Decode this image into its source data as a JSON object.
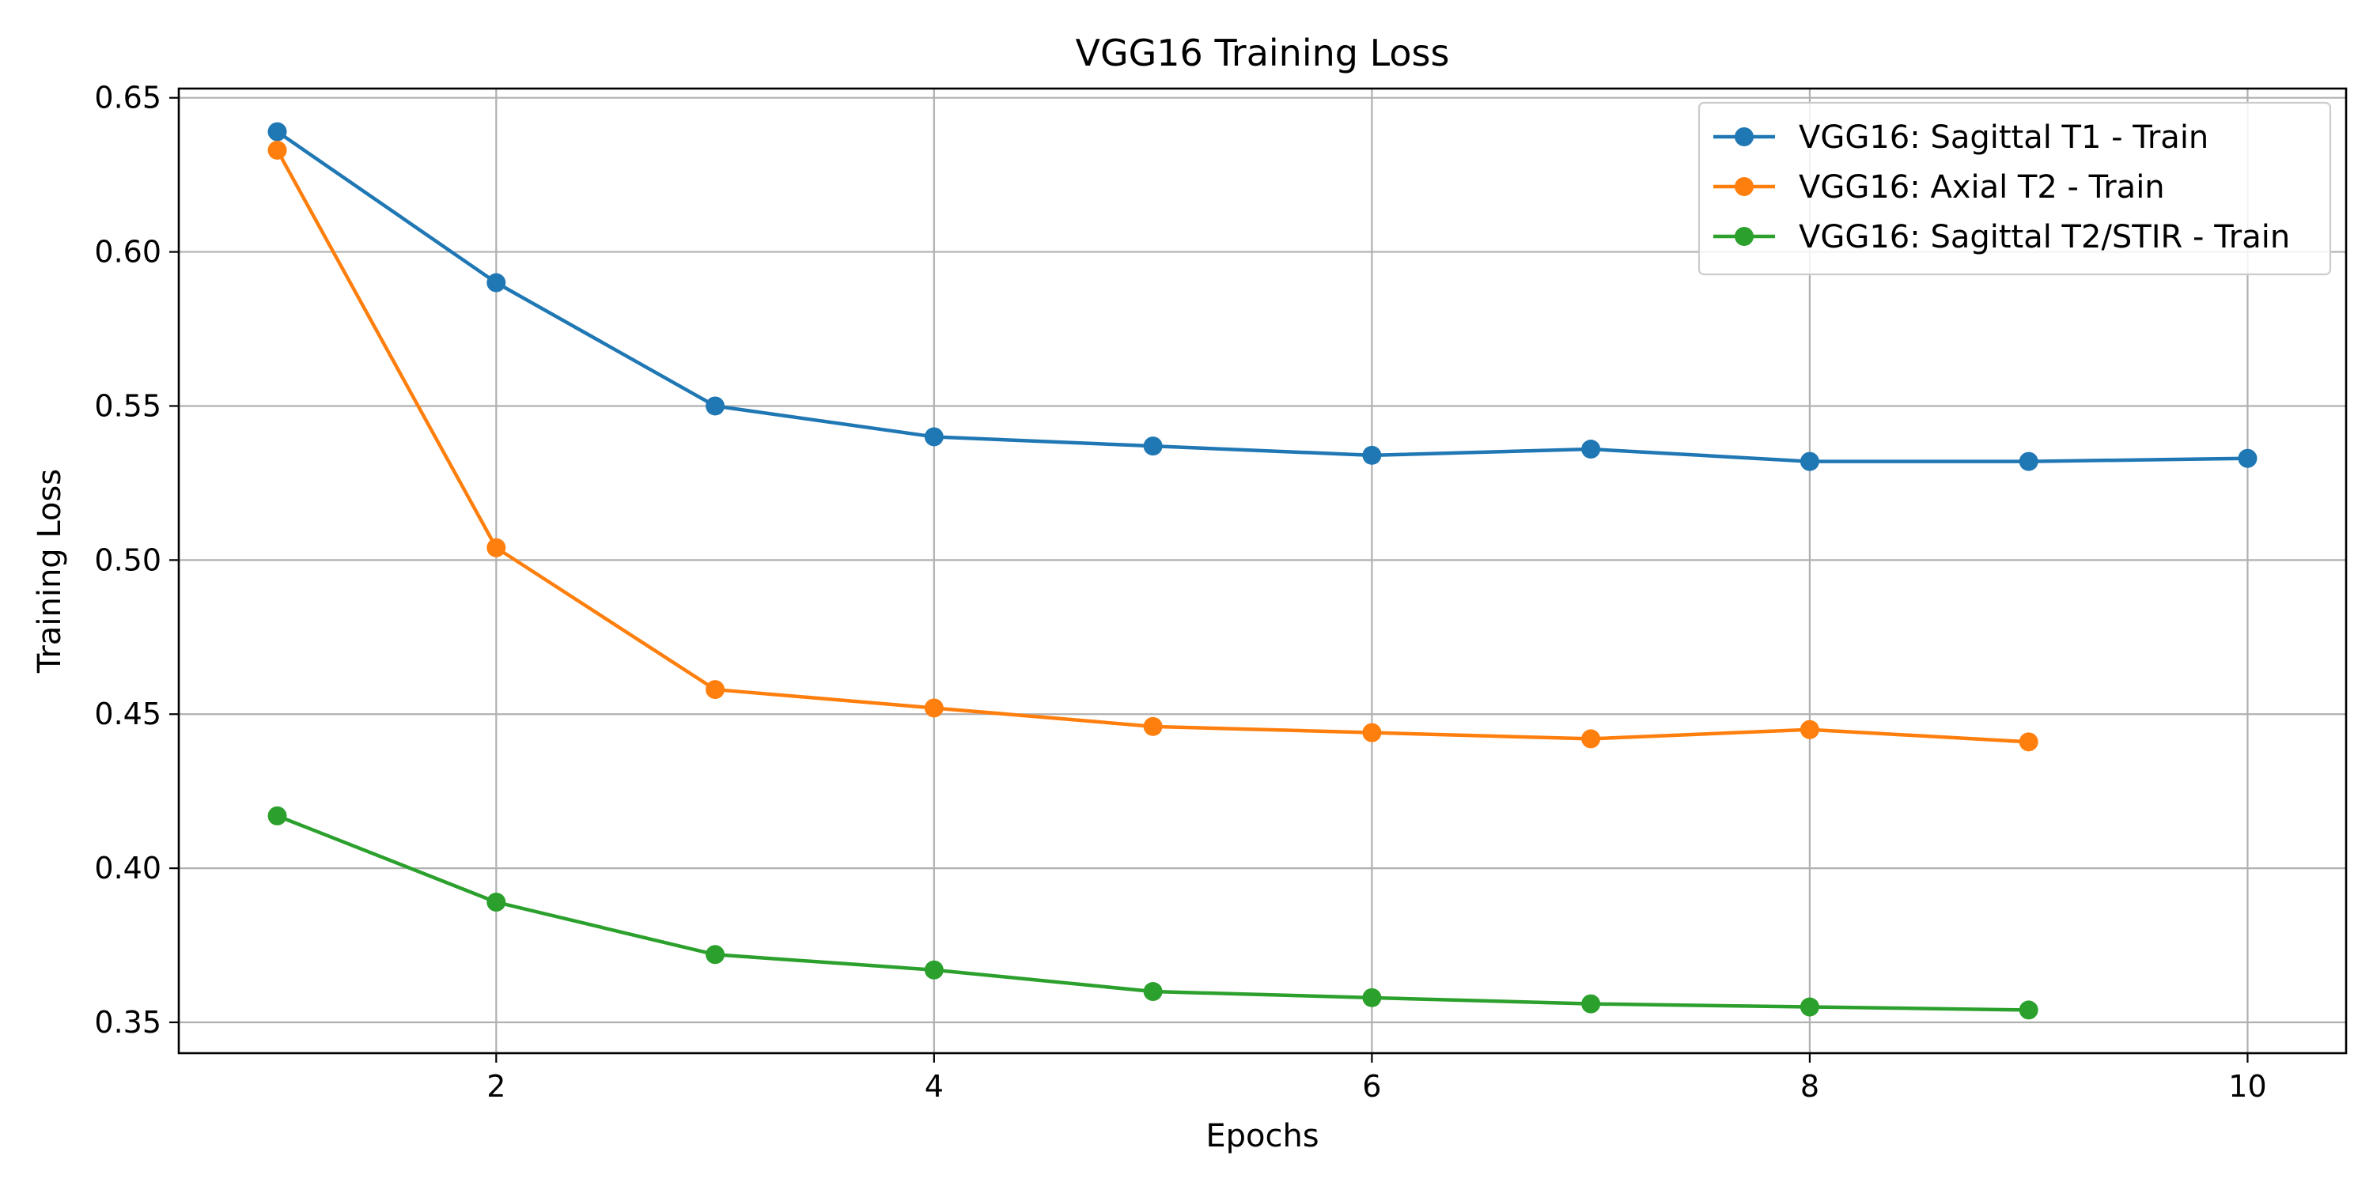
{
  "chart_data": {
    "type": "line",
    "title": "VGG16 Training Loss",
    "xlabel": "Epochs",
    "ylabel": "Training Loss",
    "xlim": [
      0.55,
      10.45
    ],
    "ylim": [
      0.34,
      0.653
    ],
    "xticks": [
      2,
      4,
      6,
      8,
      10
    ],
    "xtick_labels": [
      "2",
      "4",
      "6",
      "8",
      "10"
    ],
    "yticks": [
      0.35,
      0.4,
      0.45,
      0.5,
      0.55,
      0.6,
      0.65
    ],
    "ytick_labels": [
      "0.35",
      "0.40",
      "0.45",
      "0.50",
      "0.55",
      "0.60",
      "0.65"
    ],
    "grid": true,
    "legend_position": "top-right",
    "series": [
      {
        "name": "VGG16: Sagittal T1 - Train",
        "color": "#1f77b4",
        "marker": "circle",
        "x": [
          1,
          2,
          3,
          4,
          5,
          6,
          7,
          8,
          9,
          10
        ],
        "y": [
          0.639,
          0.59,
          0.55,
          0.54,
          0.537,
          0.534,
          0.536,
          0.532,
          0.532,
          0.533
        ]
      },
      {
        "name": "VGG16: Axial T2 - Train",
        "color": "#ff7f0e",
        "marker": "circle",
        "x": [
          1,
          2,
          3,
          4,
          5,
          6,
          7,
          8,
          9
        ],
        "y": [
          0.633,
          0.504,
          0.458,
          0.452,
          0.446,
          0.444,
          0.442,
          0.445,
          0.441
        ]
      },
      {
        "name": "VGG16: Sagittal T2/STIR - Train",
        "color": "#2ca02c",
        "marker": "circle",
        "x": [
          1,
          2,
          3,
          4,
          5,
          6,
          7,
          8,
          9
        ],
        "y": [
          0.417,
          0.389,
          0.372,
          0.367,
          0.36,
          0.358,
          0.356,
          0.355,
          0.354
        ]
      }
    ]
  }
}
